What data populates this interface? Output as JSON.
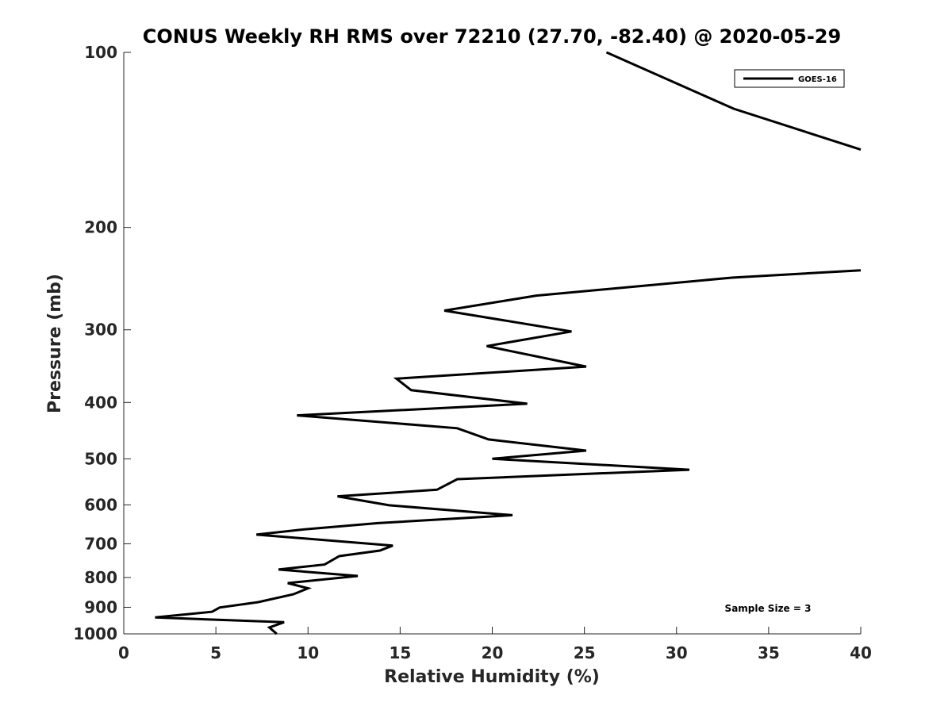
{
  "chart_data": {
    "type": "line",
    "title": "CONUS Weekly RH RMS over 72210 (27.70, -82.40) @ 2020-05-29",
    "xlabel": "Relative Humidity (%)",
    "ylabel": "Pressure (mb)",
    "xlim": [
      0,
      40
    ],
    "ylim": [
      100,
      1000
    ],
    "y_scale": "log",
    "y_reversed": true,
    "grid": false,
    "legend_position": "top-right",
    "x_ticks": [
      "0",
      "5",
      "10",
      "15",
      "20",
      "25",
      "30",
      "35",
      "40"
    ],
    "y_ticks": [
      "100",
      "200",
      "300",
      "400",
      "500",
      "600",
      "700",
      "800",
      "900",
      "1000"
    ],
    "annotation": "Sample Size = 3",
    "series": [
      {
        "name": "GOES-16",
        "color": "#000000",
        "segments": [
          {
            "x": [
              26.2,
              33.1,
              40.0
            ],
            "y": [
              100,
              125,
              147
            ]
          },
          {
            "x": [
              40.0,
              33.0,
              22.4,
              17.4,
              24.3,
              19.7,
              25.1,
              14.8,
              15.6,
              21.9,
              9.4,
              18.1,
              19.8,
              25.1,
              20.0,
              30.7,
              18.1,
              17.0,
              11.6,
              14.4,
              21.1,
              13.8,
              9.6,
              7.2,
              14.6,
              13.9,
              11.7,
              10.9,
              8.4,
              12.7,
              8.9,
              10.0,
              9.2,
              7.3,
              5.2,
              4.8,
              1.7,
              8.7,
              7.9,
              8.3
            ],
            "y": [
              237,
              244,
              262,
              278,
              302,
              320,
              347,
              364,
              381,
              402,
              421,
              443,
              463,
              484,
              500,
              522,
              542,
              565,
              580,
              601,
              625,
              645,
              662,
              675,
              705,
              719,
              735,
              760,
              775,
              795,
              818,
              835,
              855,
              882,
              901,
              916,
              937,
              955,
              975,
              1000
            ]
          }
        ]
      }
    ]
  }
}
